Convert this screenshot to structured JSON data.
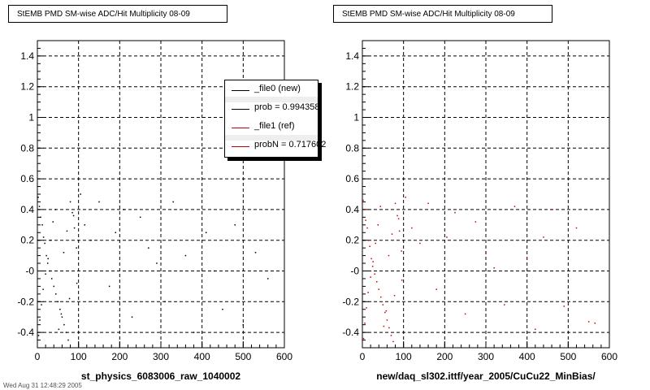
{
  "chart_data": [
    {
      "type": "scatter",
      "title": "StEMB PMD SM-wise ADC/Hit Multiplicity 08-09",
      "xlabel": "st_physics_6083006_raw_1040002",
      "ylabel": "",
      "xlim": [
        0,
        600
      ],
      "ylim": [
        -0.5,
        1.5
      ],
      "x_ticks": [
        "0",
        "100",
        "200",
        "300",
        "400",
        "500",
        "600"
      ],
      "y_ticks": [
        "-0.4",
        "-0.2",
        "-0",
        "0.2",
        "0.4",
        "0.6",
        "0.8",
        "1",
        "1.2",
        "1.4"
      ],
      "grid": true,
      "marker_color": "#000000",
      "series": [
        {
          "x": [
            2,
            5,
            8,
            12,
            15,
            18,
            22,
            25,
            30,
            35,
            40,
            45,
            50,
            55,
            60,
            65,
            70,
            75,
            80,
            85,
            90,
            95,
            3,
            6,
            10,
            14,
            20,
            26,
            32,
            38,
            44,
            52,
            58,
            64,
            72,
            78,
            88,
            96,
            105,
            115,
            130,
            150,
            175,
            190,
            210,
            230,
            250,
            270,
            290,
            310,
            330,
            360,
            380,
            410,
            430,
            450,
            480,
            500,
            530,
            560
          ],
          "y": [
            0.48,
            0.42,
            0.35,
            0.3,
            0.22,
            0.18,
            0.1,
            0.05,
            0.0,
            -0.05,
            -0.1,
            -0.15,
            -0.2,
            -0.25,
            -0.3,
            -0.35,
            -0.4,
            -0.45,
            0.45,
            0.38,
            0.28,
            0.15,
            -0.42,
            -0.32,
            -0.22,
            -0.12,
            -0.02,
            0.08,
            0.2,
            0.32,
            0.4,
            -0.38,
            -0.28,
            0.12,
            0.26,
            -0.18,
            0.36,
            -0.08,
            0.5,
            0.3,
            0.2,
            0.45,
            -0.1,
            0.25,
            0.4,
            -0.3,
            0.35,
            0.15,
            0.05,
            -0.2,
            0.45,
            0.1,
            -0.4,
            0.25,
            0.0,
            -0.25,
            0.3,
            -0.35,
            0.12,
            -0.05
          ]
        }
      ]
    },
    {
      "type": "scatter",
      "title": "StEMB PMD SM-wise ADC/Hit Multiplicity 08-09",
      "xlabel": "new/daq_sl302.ittf/year_2005/CuCu22_MinBias/",
      "ylabel": "",
      "xlim": [
        0,
        600
      ],
      "ylim": [
        -0.5,
        1.5
      ],
      "x_ticks": [
        "0",
        "100",
        "200",
        "300",
        "400",
        "500",
        "600"
      ],
      "y_ticks": [
        "-0.4",
        "-0.2",
        "-0",
        "0.2",
        "0.4",
        "0.6",
        "0.8",
        "1",
        "1.2",
        "1.4"
      ],
      "grid": true,
      "marker_color": "#cc0000",
      "series": [
        {
          "x": [
            2,
            5,
            8,
            12,
            15,
            18,
            22,
            25,
            30,
            35,
            40,
            45,
            50,
            55,
            60,
            65,
            70,
            75,
            80,
            85,
            90,
            95,
            3,
            6,
            10,
            14,
            20,
            26,
            32,
            38,
            44,
            52,
            58,
            64,
            72,
            78,
            88,
            96,
            105,
            120,
            140,
            160,
            180,
            205,
            225,
            250,
            275,
            300,
            320,
            345,
            370,
            400,
            420,
            440,
            460,
            490,
            520,
            550,
            565
          ],
          "y": [
            0.46,
            0.4,
            0.33,
            0.28,
            0.2,
            0.16,
            0.08,
            0.03,
            -0.02,
            -0.07,
            -0.12,
            -0.17,
            -0.22,
            -0.27,
            -0.32,
            -0.37,
            -0.42,
            -0.46,
            0.44,
            0.36,
            0.26,
            0.13,
            -0.44,
            -0.34,
            -0.24,
            -0.14,
            -0.04,
            0.06,
            0.18,
            0.3,
            0.42,
            -0.36,
            -0.26,
            0.1,
            0.24,
            -0.16,
            0.34,
            -0.06,
            0.48,
            0.28,
            0.18,
            0.44,
            -0.12,
            0.22,
            0.38,
            -0.28,
            0.32,
            0.12,
            0.02,
            -0.22,
            0.42,
            0.08,
            -0.38,
            0.22,
            0.4,
            -0.23,
            0.28,
            -0.33,
            -0.34
          ]
        }
      ]
    }
  ],
  "legend": {
    "entries": [
      {
        "label": "_file0 (new)",
        "color": "#000000"
      },
      {
        "label": "prob = 0.994358",
        "color": "#000000"
      },
      {
        "label": "_file1 (ref)",
        "color": "#cc0000"
      },
      {
        "label": "probN = 0.717602",
        "color": "#cc0000"
      }
    ]
  },
  "footer_text": "Wed Aug 31 12:48:29 2005"
}
